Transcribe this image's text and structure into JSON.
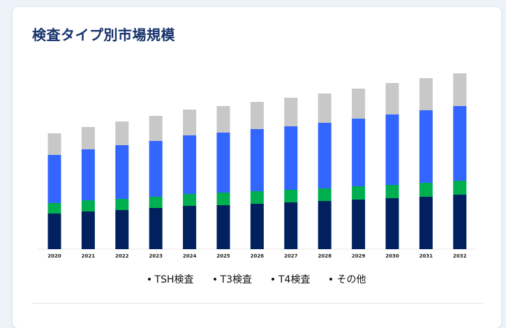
{
  "page": {
    "title": "検査タイプ別市場規模"
  },
  "chart_data": {
    "type": "bar",
    "stacked": true,
    "title": "検査タイプ別市場規模",
    "xlabel": "",
    "ylabel": "",
    "categories": [
      "2020",
      "2021",
      "2022",
      "2023",
      "2024",
      "2025",
      "2026",
      "2027",
      "2028",
      "2029",
      "2030",
      "2031",
      "2032"
    ],
    "series": [
      {
        "name": "TSH検査",
        "color": "#00205f",
        "values": [
          51,
          54,
          56,
          59,
          62,
          63,
          65,
          67,
          69,
          71,
          73,
          75,
          78
        ]
      },
      {
        "name": "T3検査",
        "color": "#00b050",
        "values": [
          15,
          16,
          16,
          16,
          17,
          18,
          18,
          18,
          18,
          19,
          19,
          20,
          20
        ]
      },
      {
        "name": "T4検査",
        "color": "#3366ff",
        "values": [
          69,
          73,
          77,
          80,
          84,
          86,
          89,
          91,
          94,
          97,
          101,
          104,
          107
        ]
      },
      {
        "name": "その他",
        "color": "#c8c8c8",
        "values": [
          31,
          32,
          34,
          36,
          37,
          38,
          39,
          41,
          42,
          43,
          45,
          46,
          47
        ]
      }
    ],
    "ylim": [
      0,
      260
    ],
    "grid": false,
    "legend_position": "bottom"
  }
}
